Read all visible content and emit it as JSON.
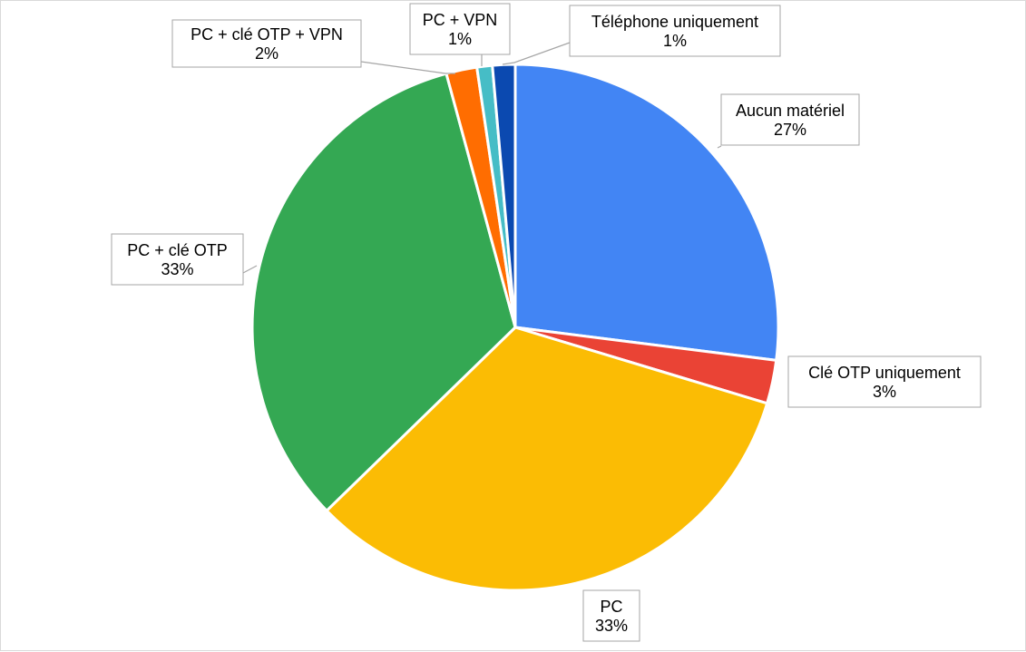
{
  "chart_data": {
    "type": "pie",
    "title": "",
    "slices": [
      {
        "name": "Aucun matériel",
        "value": 27,
        "label": "27%",
        "color": "#4285f4"
      },
      {
        "name": "Clé OTP uniquement",
        "value": 3,
        "label": "3%",
        "color": "#ea4335"
      },
      {
        "name": "PC",
        "value": 33,
        "label": "33%",
        "color": "#fbbc04"
      },
      {
        "name": "PC + clé OTP",
        "value": 33,
        "label": "33%",
        "color": "#34a853"
      },
      {
        "name": "PC + clé OTP + VPN",
        "value": 2,
        "label": "2%",
        "color": "#ff6d01"
      },
      {
        "name": "PC + VPN",
        "value": 1,
        "label": "1%",
        "color": "#46bdc6"
      },
      {
        "name": "Téléphone uniquement",
        "value": 1,
        "label": "1%",
        "color": "#0b49b0"
      }
    ],
    "slice_angles_deg": [
      97.2,
      9.6,
      119.0,
      119.0,
      6.8,
      3.4,
      5.0
    ],
    "legend": "none",
    "data_labels": "category and percentage, callout boxes with leader lines"
  }
}
